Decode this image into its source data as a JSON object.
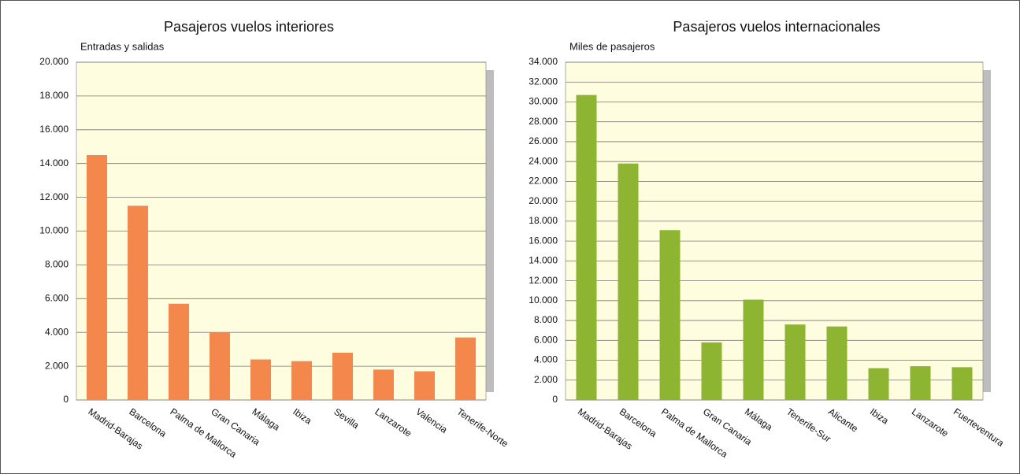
{
  "chart_data": [
    {
      "type": "bar",
      "title": "Pasajeros vuelos interiores",
      "subtitle": "Entradas y salidas",
      "categories": [
        "Madrid-Barajas",
        "Barcelona",
        "Palma  de Mallorca",
        "Gran Canaria",
        "Málaga",
        "Ibiza",
        "Sevilla",
        "Lanzarote",
        "Valencia",
        "Tenerife-Norte"
      ],
      "values": [
        14500,
        11500,
        5700,
        4000,
        2400,
        2300,
        2800,
        1800,
        1700,
        3700
      ],
      "color": "#f4874b",
      "ylim": [
        0,
        20000
      ],
      "yticks": [
        0,
        {
          "value": 2000,
          "label": "2.000"
        },
        {
          "value": 4000,
          "label": "4.000"
        },
        {
          "value": 6000,
          "label": "6.000"
        },
        {
          "value": 8000,
          "label": "8.000"
        },
        {
          "value": 10000,
          "label": "10.000"
        },
        {
          "value": 12000,
          "label": "12.000"
        },
        {
          "value": 14000,
          "label": "14.000"
        },
        {
          "value": 16000,
          "label": "16.000"
        },
        {
          "value": 18000,
          "label": "18.000"
        },
        {
          "value": 20000,
          "label": "20.000"
        }
      ],
      "grid": true
    },
    {
      "type": "bar",
      "title": "Pasajeros vuelos internacionales",
      "subtitle": "Miles de pasajeros",
      "categories": [
        "Madrid-Barajas",
        "Barcelona",
        "Palma  de Mallorca",
        "Gran Canaria",
        "Málaga",
        "Tenerife-Sur",
        "Alicante",
        "Ibiza",
        "Lanzarote",
        "Fuerteventura"
      ],
      "values": [
        30700,
        23800,
        17100,
        5800,
        10100,
        7600,
        7400,
        3200,
        3400,
        3300
      ],
      "color": "#8db532",
      "ylim": [
        0,
        34000
      ],
      "yticks": [
        0,
        {
          "value": 2000,
          "label": "2.000"
        },
        {
          "value": 4000,
          "label": "4.000"
        },
        {
          "value": 6000,
          "label": "6.000"
        },
        {
          "value": 8000,
          "label": "8.000"
        },
        {
          "value": 10000,
          "label": "10.000"
        },
        {
          "value": 12000,
          "label": "12.000"
        },
        {
          "value": 14000,
          "label": "14.000"
        },
        {
          "value": 16000,
          "label": "16.000"
        },
        {
          "value": 18000,
          "label": "18.000"
        },
        {
          "value": 20000,
          "label": "20.000"
        },
        {
          "value": 22000,
          "label": "22.000"
        },
        {
          "value": 24000,
          "label": "24.000"
        },
        {
          "value": 26000,
          "label": "26.000"
        },
        {
          "value": 28000,
          "label": "28.000"
        },
        {
          "value": 30000,
          "label": "30.000"
        },
        {
          "value": 32000,
          "label": "32.000"
        },
        {
          "value": 34000,
          "label": "34.000"
        }
      ],
      "grid": true
    }
  ]
}
